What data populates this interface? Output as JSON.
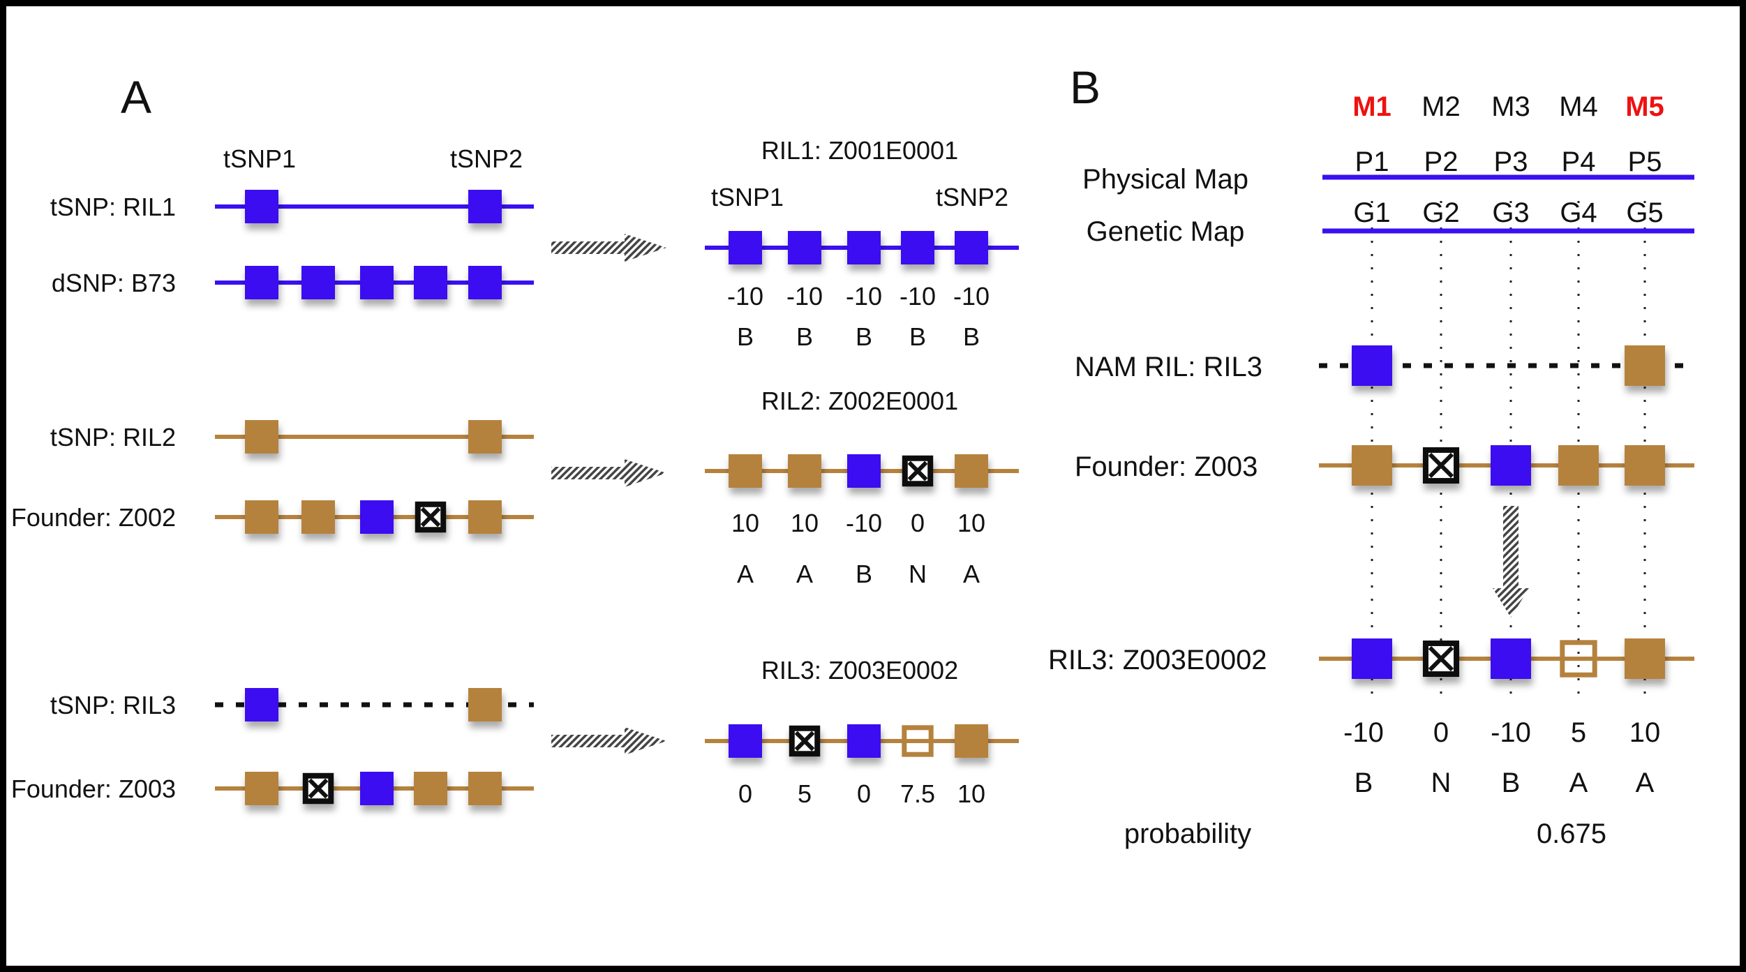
{
  "colors": {
    "blue": "#3a10f0",
    "brown": "#b5823e",
    "black": "#111111",
    "red": "#ee1111"
  },
  "panel_a": {
    "label": "A",
    "tsnp_header": [
      "tSNP1",
      "tSNP2"
    ],
    "rows": [
      {
        "label": "tSNP: RIL1",
        "line": "blue",
        "markers": [
          "B",
          null,
          null,
          null,
          "B"
        ]
      },
      {
        "label": "dSNP: B73",
        "line": "blue",
        "markers": [
          "B",
          "B",
          "B",
          "B",
          "B"
        ]
      },
      {
        "label": "tSNP: RIL2",
        "line": "brown",
        "markers": [
          "A",
          null,
          null,
          null,
          "A"
        ]
      },
      {
        "label": "Founder: Z002",
        "line": "brown",
        "markers": [
          "A",
          "A",
          "B",
          "X",
          "A"
        ]
      },
      {
        "label": "tSNP: RIL3",
        "line": "dotted",
        "markers": [
          "B",
          null,
          null,
          null,
          "A"
        ]
      },
      {
        "label": "Founder: Z003",
        "line": "brown",
        "markers": [
          "A",
          "X",
          "B",
          "A",
          "A"
        ]
      }
    ],
    "results": [
      {
        "title": "RIL1: Z001E0001",
        "tsnp_labels": [
          "tSNP1",
          "tSNP2"
        ],
        "markers": [
          "B",
          "B",
          "B",
          "B",
          "B"
        ],
        "scores": [
          "-10",
          "-10",
          "-10",
          "-10",
          "-10"
        ],
        "calls": [
          "B",
          "B",
          "B",
          "B",
          "B"
        ]
      },
      {
        "title": "RIL2: Z002E0001",
        "markers": [
          "A",
          "A",
          "B",
          "X",
          "A"
        ],
        "scores": [
          "10",
          "10",
          "-10",
          "0",
          "10"
        ],
        "calls": [
          "A",
          "A",
          "B",
          "N",
          "A"
        ]
      },
      {
        "title": "RIL3: Z003E0002",
        "markers": [
          "B",
          "X",
          "B",
          "O",
          "A"
        ],
        "scores": [
          "0",
          "5",
          "0",
          "7.5",
          "10"
        ],
        "calls": []
      }
    ]
  },
  "panel_b": {
    "label": "B",
    "markers": [
      "M1",
      "M2",
      "M3",
      "M4",
      "M5"
    ],
    "highlighted_markers": [
      "M1",
      "M5"
    ],
    "physical_map": {
      "label": "Physical Map",
      "positions": [
        "P1",
        "P2",
        "P3",
        "P4",
        "P5"
      ]
    },
    "genetic_map": {
      "label": "Genetic Map",
      "positions": [
        "G1",
        "G2",
        "G3",
        "G4",
        "G5"
      ]
    },
    "rows": [
      {
        "label": "NAM RIL: RIL3",
        "line": "dotted",
        "markers": [
          "B",
          null,
          null,
          null,
          "A"
        ]
      },
      {
        "label": "Founder: Z003",
        "line": "brown",
        "markers": [
          "A",
          "X",
          "B",
          "A",
          "A"
        ]
      },
      {
        "label": "RIL3: Z003E0002",
        "line": "brown",
        "markers": [
          "B",
          "X",
          "B",
          "O",
          "A"
        ]
      }
    ],
    "scores": [
      "-10",
      "0",
      "-10",
      "5",
      "10"
    ],
    "calls": [
      "B",
      "N",
      "B",
      "A",
      "A"
    ],
    "probability_label": "probability",
    "probability_value": "0.675"
  }
}
